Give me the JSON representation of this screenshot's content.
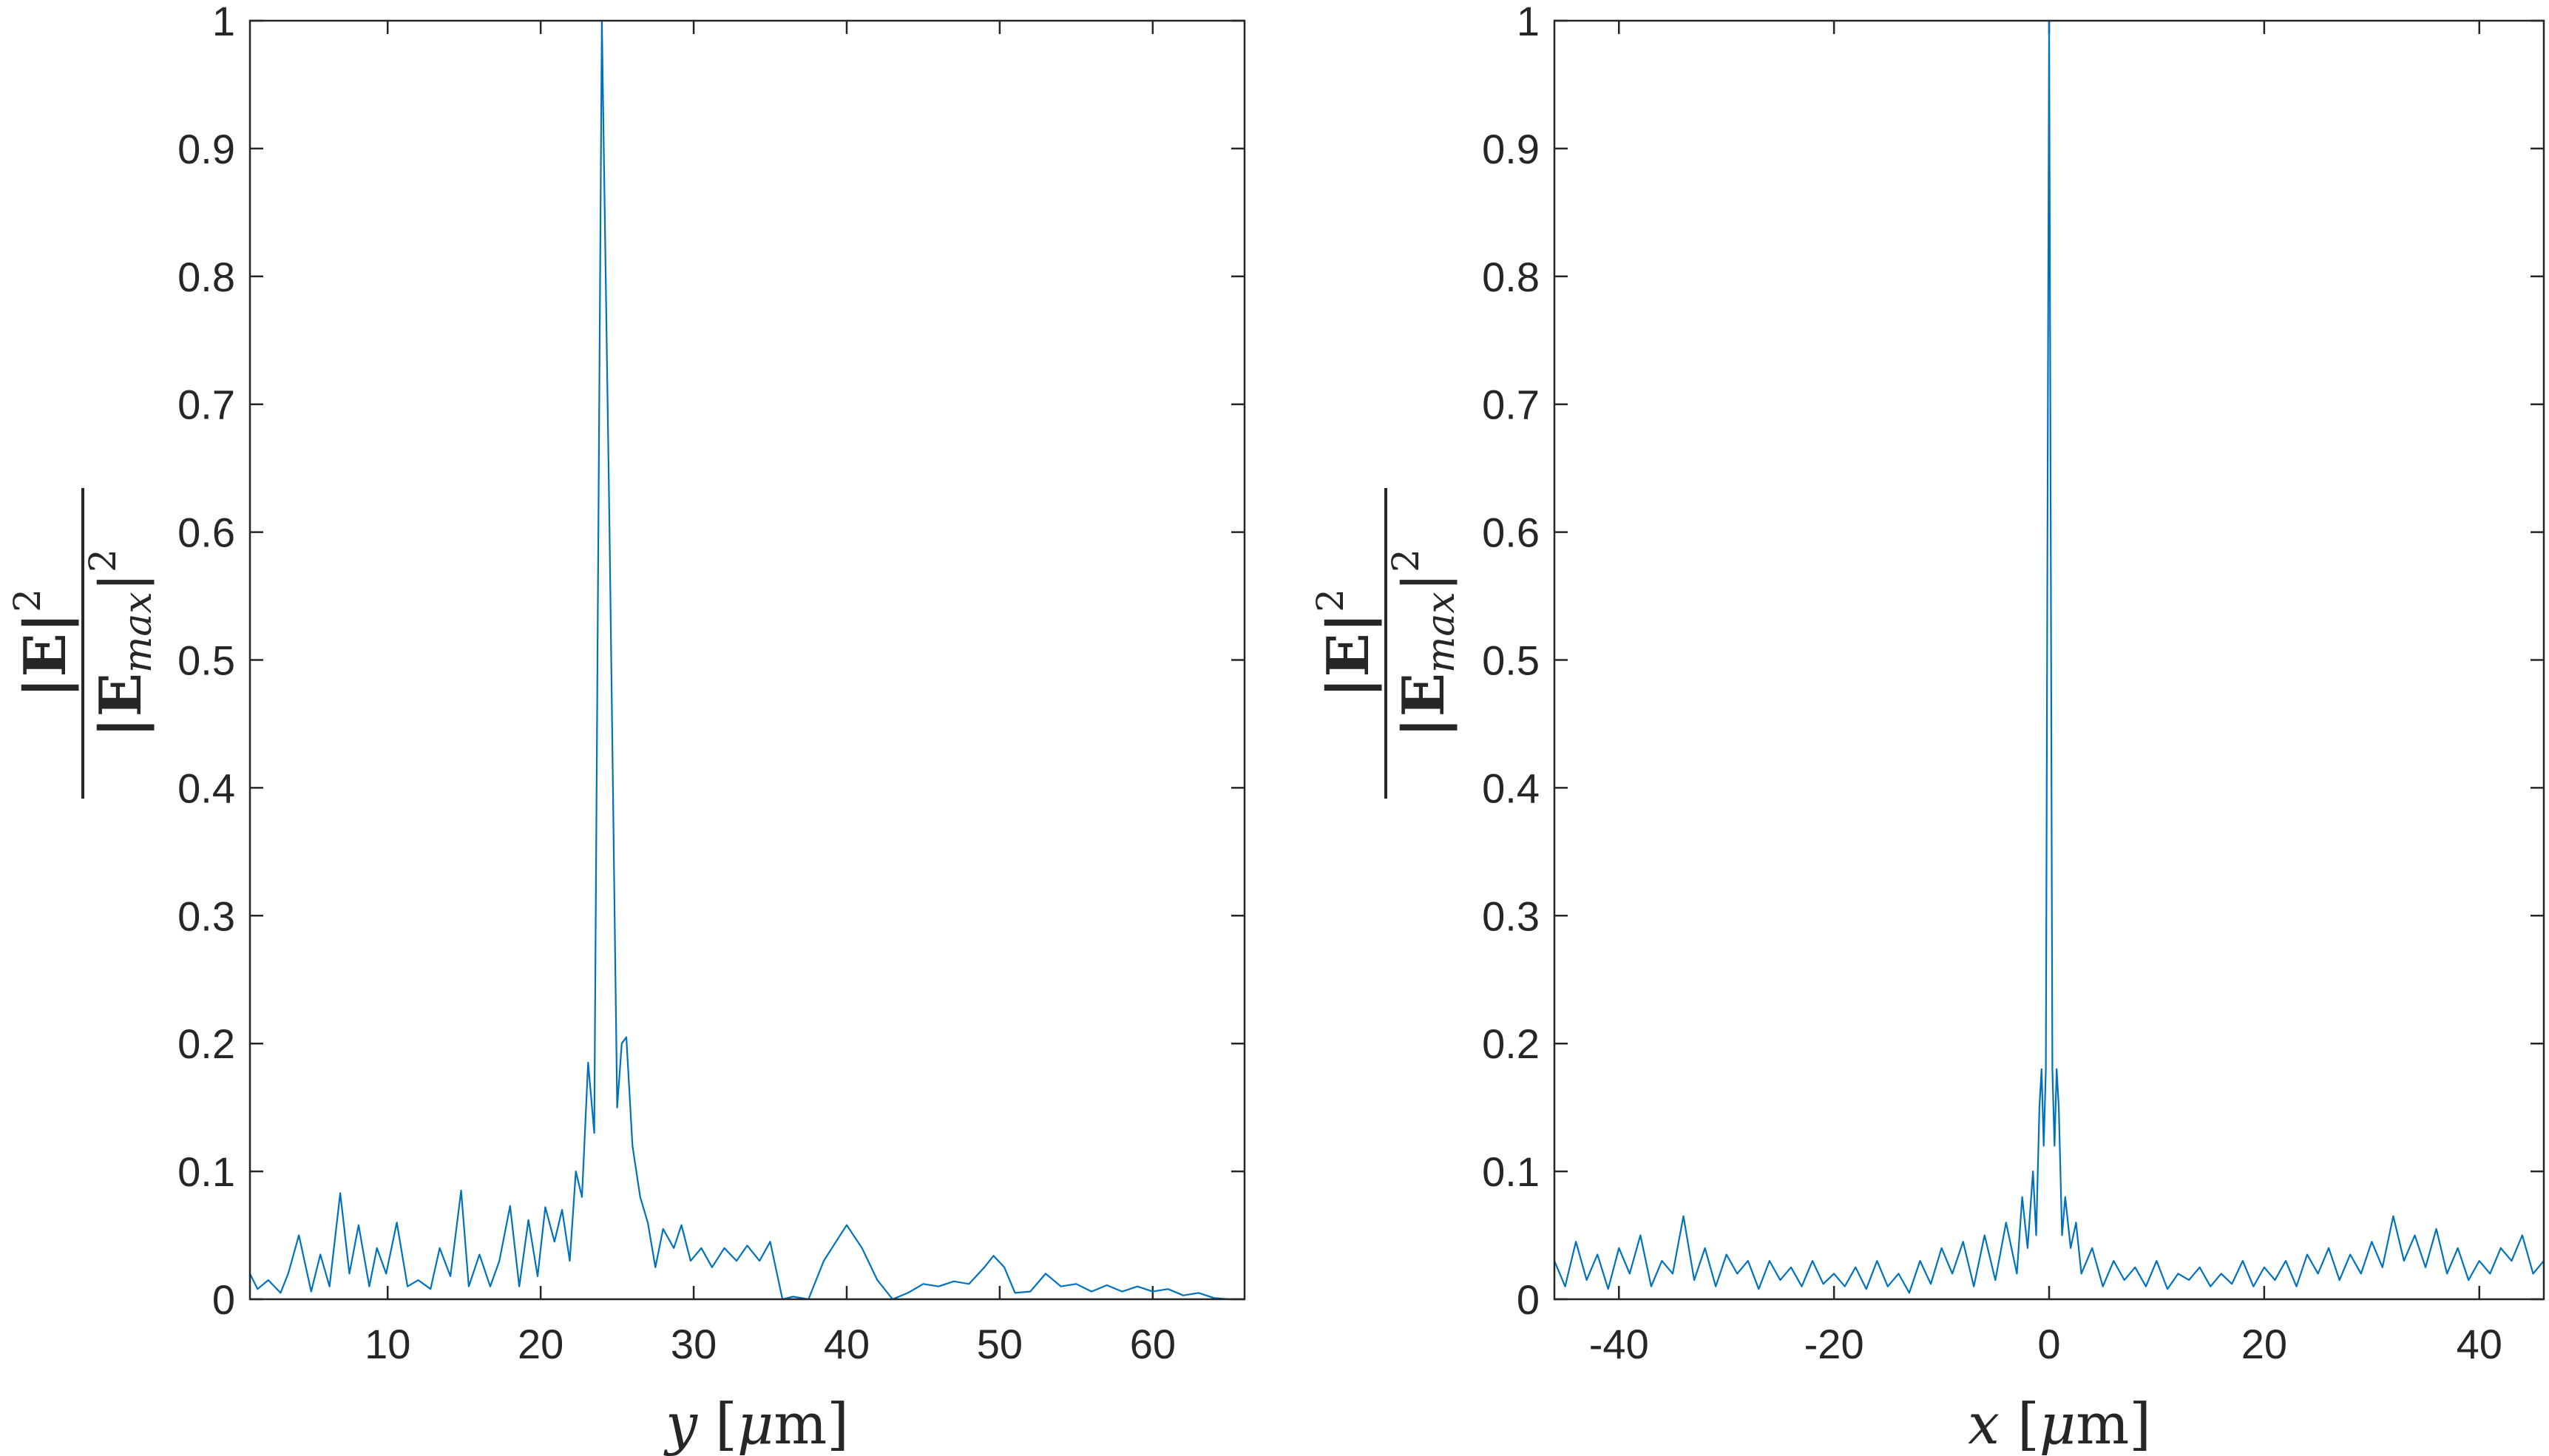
{
  "chart_data": [
    {
      "type": "line",
      "xlabel": "y [μm]",
      "ylabel": "|E|² / |E_max|²",
      "xlim": [
        1,
        66
      ],
      "ylim": [
        0,
        1
      ],
      "xticks": [
        10,
        20,
        30,
        40,
        50,
        60
      ],
      "xtick_labels": [
        "10",
        "20",
        "30",
        "40",
        "50",
        "60"
      ],
      "yticks": [
        0,
        0.1,
        0.2,
        0.3,
        0.4,
        0.5,
        0.6,
        0.7,
        0.8,
        0.9,
        1
      ],
      "ytick_labels": [
        "0",
        "0.1",
        "0.2",
        "0.3",
        "0.4",
        "0.5",
        "0.6",
        "0.7",
        "0.8",
        "0.9",
        "1"
      ],
      "grid": false,
      "color": "#0072BD",
      "series": [
        {
          "x": [
            1,
            1.5,
            2.2,
            3,
            3.5,
            4.2,
            5,
            5.6,
            6.2,
            6.9,
            7.5,
            8.1,
            8.8,
            9.3,
            9.9,
            10.6,
            11.3,
            12,
            12.8,
            13.4,
            14.1,
            14.8,
            15.3,
            16,
            16.7,
            17.3,
            18,
            18.6,
            19.2,
            19.8,
            20.3,
            20.9,
            21.4,
            21.9,
            22.3,
            22.7,
            23.1,
            23.5,
            24,
            24.5,
            25,
            25.3,
            25.6,
            26,
            26.5,
            27,
            27.5,
            28,
            28.7,
            29.2,
            29.8,
            30.5,
            31.2,
            32,
            32.8,
            33.5,
            34.3,
            35,
            35.8,
            36.5,
            37.5,
            38.5,
            39.3,
            40,
            41,
            42,
            43,
            44,
            45,
            46,
            47,
            48,
            49,
            49.6,
            50.3,
            51,
            52,
            53,
            54,
            55,
            56,
            57,
            58,
            59,
            60,
            61,
            62,
            63,
            64,
            65,
            66
          ],
          "y": [
            0.02,
            0.008,
            0.015,
            0.005,
            0.02,
            0.05,
            0.006,
            0.035,
            0.01,
            0.083,
            0.02,
            0.058,
            0.01,
            0.04,
            0.02,
            0.06,
            0.01,
            0.015,
            0.008,
            0.04,
            0.018,
            0.085,
            0.01,
            0.035,
            0.01,
            0.03,
            0.073,
            0.01,
            0.062,
            0.018,
            0.072,
            0.045,
            0.07,
            0.03,
            0.1,
            0.08,
            0.185,
            0.13,
            1.0,
            0.6,
            0.15,
            0.2,
            0.205,
            0.12,
            0.08,
            0.06,
            0.025,
            0.055,
            0.04,
            0.058,
            0.03,
            0.04,
            0.025,
            0.04,
            0.03,
            0.042,
            0.03,
            0.045,
            0.0,
            0.002,
            0.0,
            0.03,
            0.045,
            0.058,
            0.04,
            0.015,
            0.0,
            0.005,
            0.012,
            0.01,
            0.014,
            0.012,
            0.025,
            0.034,
            0.025,
            0.005,
            0.006,
            0.02,
            0.01,
            0.012,
            0.006,
            0.011,
            0.006,
            0.01,
            0.006,
            0.008,
            0.003,
            0.005,
            0.001,
            0.0,
            0.0
          ]
        }
      ]
    },
    {
      "type": "line",
      "xlabel": "x [μm]",
      "ylabel": "|E|² / |E_max|²",
      "xlim": [
        -46,
        46
      ],
      "ylim": [
        0,
        1
      ],
      "xticks": [
        -40,
        -20,
        0,
        20,
        40
      ],
      "xtick_labels": [
        "-40",
        "-20",
        "0",
        "20",
        "40"
      ],
      "yticks": [
        0,
        0.1,
        0.2,
        0.3,
        0.4,
        0.5,
        0.6,
        0.7,
        0.8,
        0.9,
        1
      ],
      "ytick_labels": [
        "0",
        "0.1",
        "0.2",
        "0.3",
        "0.4",
        "0.5",
        "0.6",
        "0.7",
        "0.8",
        "0.9",
        "1"
      ],
      "grid": false,
      "color": "#0072BD",
      "series": [
        {
          "x": [
            -46,
            -45,
            -44,
            -43,
            -42,
            -41,
            -40,
            -39,
            -38,
            -37,
            -36,
            -35,
            -34,
            -33,
            -32,
            -31,
            -30,
            -29,
            -28,
            -27,
            -26,
            -25,
            -24,
            -23,
            -22,
            -21,
            -20,
            -19,
            -18,
            -17,
            -16,
            -15,
            -14,
            -13,
            -12,
            -11,
            -10,
            -9,
            -8,
            -7,
            -6,
            -5,
            -4,
            -3,
            -2.5,
            -2,
            -1.5,
            -1.2,
            -0.9,
            -0.7,
            -0.5,
            -0.3,
            -0.15,
            0,
            0.15,
            0.3,
            0.5,
            0.7,
            0.9,
            1.2,
            1.5,
            2,
            2.5,
            3,
            4,
            5,
            6,
            7,
            8,
            9,
            10,
            11,
            12,
            13,
            14,
            15,
            16,
            17,
            18,
            19,
            20,
            21,
            22,
            23,
            24,
            25,
            26,
            27,
            28,
            29,
            30,
            31,
            32,
            33,
            34,
            35,
            36,
            37,
            38,
            39,
            40,
            41,
            42,
            43,
            44,
            45,
            46
          ],
          "y": [
            0.03,
            0.01,
            0.045,
            0.015,
            0.035,
            0.008,
            0.04,
            0.02,
            0.05,
            0.01,
            0.03,
            0.02,
            0.065,
            0.015,
            0.04,
            0.01,
            0.035,
            0.02,
            0.03,
            0.008,
            0.03,
            0.015,
            0.025,
            0.01,
            0.03,
            0.012,
            0.02,
            0.01,
            0.025,
            0.008,
            0.03,
            0.01,
            0.02,
            0.005,
            0.03,
            0.012,
            0.04,
            0.02,
            0.045,
            0.01,
            0.05,
            0.015,
            0.06,
            0.02,
            0.08,
            0.04,
            0.1,
            0.05,
            0.15,
            0.18,
            0.12,
            0.18,
            0.6,
            1.0,
            0.6,
            0.18,
            0.12,
            0.18,
            0.15,
            0.05,
            0.08,
            0.04,
            0.06,
            0.02,
            0.04,
            0.01,
            0.03,
            0.015,
            0.025,
            0.01,
            0.03,
            0.008,
            0.02,
            0.015,
            0.025,
            0.01,
            0.02,
            0.012,
            0.03,
            0.01,
            0.025,
            0.015,
            0.03,
            0.01,
            0.035,
            0.02,
            0.04,
            0.015,
            0.035,
            0.02,
            0.045,
            0.025,
            0.065,
            0.03,
            0.05,
            0.025,
            0.055,
            0.02,
            0.04,
            0.015,
            0.03,
            0.02,
            0.04,
            0.03,
            0.05,
            0.02,
            0.03
          ]
        }
      ]
    }
  ]
}
